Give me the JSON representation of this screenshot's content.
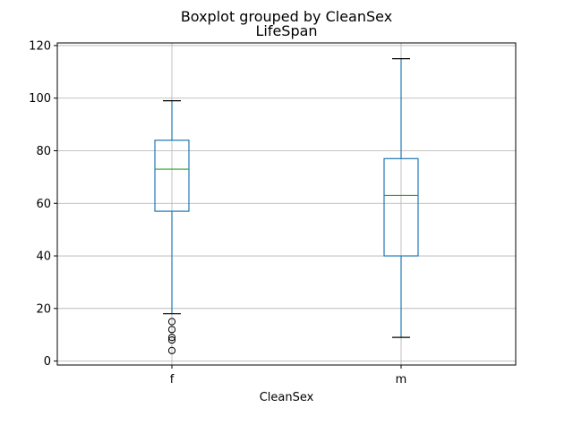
{
  "chart_data": {
    "type": "box",
    "suptitle": "Boxplot grouped by CleanSex",
    "title": "LifeSpan",
    "xlabel": "CleanSex",
    "ylabel": "",
    "ylim": [
      -1.5,
      121
    ],
    "yticks": [
      0,
      20,
      40,
      60,
      80,
      100,
      120
    ],
    "grid": true,
    "categories": [
      "f",
      "m"
    ],
    "boxes": [
      {
        "category": "f",
        "whisker_low": 18,
        "q1": 57,
        "median": 73,
        "q3": 84,
        "whisker_high": 99,
        "outliers": [
          15,
          12,
          9,
          8,
          4
        ]
      },
      {
        "category": "m",
        "whisker_low": 9,
        "q1": 40,
        "median": 63,
        "q3": 77,
        "whisker_high": 115,
        "outliers": []
      }
    ],
    "colors": {
      "box": "#1f77b4",
      "median": "#2ca02c",
      "grid": "#b0b0b0",
      "axes": "#000000",
      "outlier": "#000000"
    }
  }
}
